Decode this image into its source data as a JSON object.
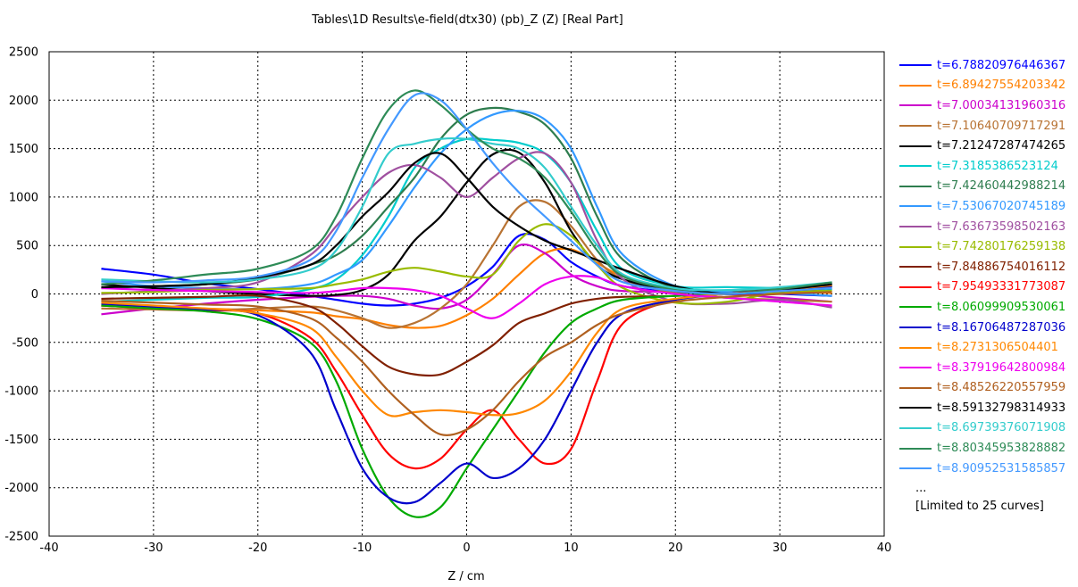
{
  "chart_data": {
    "type": "line",
    "title": "Tables\\1D Results\\e-field(dtx30) (pb)_Z (Z) [Real Part]",
    "xlabel": "Z / cm",
    "ylabel": "",
    "xlim": [
      -40,
      40
    ],
    "ylim": [
      -2500,
      2500
    ],
    "xticks": [
      -40,
      -30,
      -20,
      -10,
      0,
      10,
      20,
      30,
      40
    ],
    "yticks": [
      -2500,
      -2000,
      -1500,
      -1000,
      -500,
      0,
      500,
      1000,
      1500,
      2000,
      2500
    ],
    "grid": true,
    "legend_position": "right",
    "x": [
      -35,
      -30,
      -25,
      -20,
      -15,
      -12.5,
      -10,
      -7.5,
      -5,
      -2.5,
      0,
      2.5,
      5,
      7.5,
      10,
      12.5,
      15,
      20,
      25,
      30,
      35
    ],
    "series": [
      {
        "name": "t=6.78820976446367",
        "color": "#0000ff",
        "values": [
          260,
          200,
          110,
          50,
          -20,
          -60,
          -100,
          -120,
          -100,
          -40,
          80,
          280,
          600,
          560,
          330,
          180,
          80,
          20,
          10,
          0,
          -20
        ]
      },
      {
        "name": "t=6.89427554203342",
        "color": "#ff8000",
        "values": [
          -120,
          -140,
          -150,
          -170,
          -190,
          -230,
          -260,
          -320,
          -350,
          -330,
          -220,
          -50,
          200,
          420,
          460,
          320,
          180,
          40,
          10,
          20,
          10
        ]
      },
      {
        "name": "t=7.00034131960316",
        "color": "#cc00cc",
        "values": [
          -210,
          -150,
          -100,
          -60,
          -30,
          -20,
          -20,
          -50,
          -120,
          -150,
          -60,
          200,
          500,
          420,
          200,
          80,
          30,
          20,
          0,
          -40,
          -80
        ]
      },
      {
        "name": "t=7.10640709717291",
        "color": "#b87333",
        "values": [
          -150,
          -160,
          -170,
          -150,
          -130,
          -170,
          -250,
          -350,
          -300,
          -150,
          100,
          500,
          900,
          950,
          700,
          350,
          150,
          10,
          -40,
          -60,
          -80
        ]
      },
      {
        "name": "t=7.21247287474265",
        "color": "#000000",
        "values": [
          100,
          60,
          30,
          0,
          -20,
          -10,
          40,
          200,
          550,
          800,
          1150,
          1440,
          1460,
          1150,
          650,
          300,
          150,
          30,
          0,
          40,
          110
        ]
      },
      {
        "name": "t=7.3185386523124",
        "color": "#00cccc",
        "values": [
          -80,
          -60,
          -40,
          -30,
          50,
          150,
          400,
          800,
          1300,
          1500,
          1600,
          1590,
          1560,
          1450,
          1150,
          650,
          250,
          80,
          70,
          60,
          40
        ]
      },
      {
        "name": "t=7.42460442988214",
        "color": "#2e7d4f",
        "values": [
          60,
          80,
          100,
          150,
          300,
          400,
          600,
          900,
          1200,
          1600,
          1850,
          1920,
          1880,
          1750,
          1400,
          800,
          350,
          60,
          20,
          60,
          100
        ]
      },
      {
        "name": "t=7.53067020745189",
        "color": "#3399ff",
        "values": [
          130,
          80,
          60,
          50,
          100,
          200,
          350,
          700,
          1100,
          1450,
          1700,
          1850,
          1890,
          1800,
          1500,
          900,
          400,
          80,
          20,
          10,
          -20
        ]
      },
      {
        "name": "t=7.63673598502163",
        "color": "#a050a0",
        "values": [
          0,
          30,
          60,
          120,
          400,
          700,
          1000,
          1250,
          1330,
          1200,
          1000,
          1200,
          1400,
          1450,
          1150,
          550,
          150,
          -80,
          -100,
          -60,
          -140
        ]
      },
      {
        "name": "t=7.74280176259138",
        "color": "#99bb00",
        "values": [
          10,
          20,
          40,
          50,
          60,
          100,
          150,
          230,
          270,
          230,
          180,
          200,
          550,
          720,
          600,
          300,
          60,
          -90,
          -80,
          20,
          30
        ]
      },
      {
        "name": "t=7.84886754016112",
        "color": "#802000",
        "values": [
          -50,
          -40,
          -30,
          -20,
          -130,
          -300,
          -540,
          -750,
          -830,
          -830,
          -700,
          -530,
          -300,
          -200,
          -100,
          -50,
          -30,
          -20,
          0,
          30,
          60
        ]
      },
      {
        "name": "t=7.95493331773087",
        "color": "#ff0000",
        "values": [
          -120,
          -150,
          -170,
          -200,
          -450,
          -800,
          -1250,
          -1650,
          -1800,
          -1700,
          -1400,
          -1200,
          -1500,
          -1750,
          -1600,
          -900,
          -300,
          -60,
          0,
          40,
          80
        ]
      },
      {
        "name": "t=8.06099909530061",
        "color": "#00aa00",
        "values": [
          -120,
          -150,
          -180,
          -260,
          -500,
          -900,
          -1600,
          -2100,
          -2300,
          -2200,
          -1800,
          -1400,
          -1000,
          -600,
          -300,
          -150,
          -60,
          -20,
          0,
          40,
          80
        ]
      },
      {
        "name": "t=8.16706487287036",
        "color": "#0000cc",
        "values": [
          -100,
          -130,
          -160,
          -220,
          -600,
          -1200,
          -1800,
          -2100,
          -2150,
          -1950,
          -1750,
          -1900,
          -1800,
          -1500,
          -1000,
          -500,
          -200,
          -60,
          0,
          40,
          80
        ]
      },
      {
        "name": "t=8.2731306504401",
        "color": "#ff8800",
        "values": [
          -90,
          -120,
          -150,
          -200,
          -350,
          -650,
          -1000,
          -1250,
          -1220,
          -1200,
          -1220,
          -1250,
          -1230,
          -1100,
          -800,
          -400,
          -150,
          -50,
          0,
          40,
          90
        ]
      },
      {
        "name": "t=8.37919642800984",
        "color": "#ee00ee",
        "values": [
          60,
          40,
          30,
          20,
          10,
          30,
          60,
          60,
          40,
          -20,
          -150,
          -250,
          -100,
          100,
          180,
          170,
          80,
          0,
          -40,
          -80,
          -120
        ]
      },
      {
        "name": "t=8.48526220557959",
        "color": "#b06020",
        "values": [
          -70,
          -90,
          -110,
          -130,
          -250,
          -450,
          -700,
          -1000,
          -1250,
          -1450,
          -1400,
          -1200,
          -900,
          -650,
          -500,
          -320,
          -200,
          -80,
          -30,
          0,
          20
        ]
      },
      {
        "name": "t=8.59132798314933",
        "color": "#000000",
        "values": [
          70,
          80,
          100,
          170,
          300,
          500,
          800,
          1050,
          1350,
          1450,
          1200,
          900,
          700,
          550,
          450,
          350,
          250,
          80,
          0,
          40,
          100
        ]
      },
      {
        "name": "t=8.69739376071908",
        "color": "#33cccc",
        "values": [
          150,
          130,
          120,
          150,
          250,
          450,
          900,
          1450,
          1550,
          1600,
          1600,
          1550,
          1500,
          1300,
          900,
          500,
          200,
          60,
          40,
          70,
          120
        ]
      },
      {
        "name": "t=8.80345953828882",
        "color": "#2e8b57",
        "values": [
          100,
          140,
          200,
          260,
          450,
          800,
          1400,
          1900,
          2100,
          1950,
          1700,
          1500,
          1400,
          1200,
          850,
          450,
          180,
          40,
          0,
          50,
          120
        ]
      },
      {
        "name": "t=8.90952531585857",
        "color": "#4499ff",
        "values": [
          130,
          120,
          140,
          180,
          350,
          650,
          1200,
          1700,
          2050,
          2000,
          1700,
          1350,
          1050,
          800,
          550,
          300,
          120,
          30,
          0,
          30,
          60
        ]
      }
    ]
  },
  "legend_extra": {
    "ellipsis": "...",
    "note": "[Limited to 25 curves]"
  }
}
